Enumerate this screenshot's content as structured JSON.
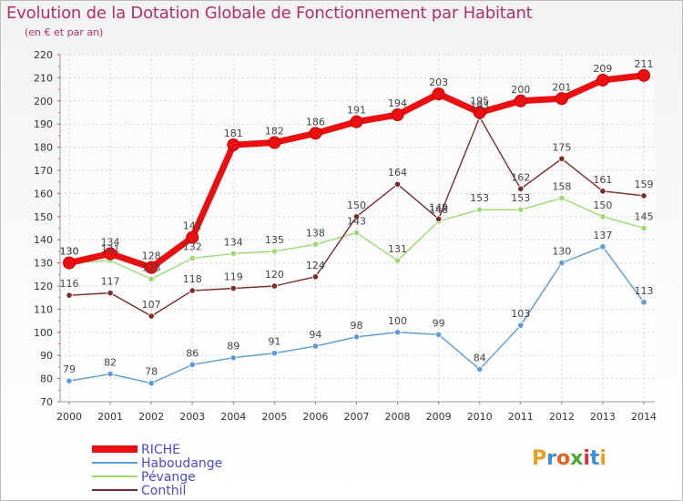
{
  "header": {
    "title": "Evolution de la Dotation Globale de Fonctionnement par Habitant",
    "subtitle": "(en € et par an)"
  },
  "logo": {
    "text": "Proxiti",
    "colors": [
      "#e8a020",
      "#3a8fd8",
      "#e06020",
      "#4aa838",
      "#d83040",
      "#3a8fd8",
      "#e8a020"
    ]
  },
  "chart_data": {
    "type": "line",
    "title": "Evolution de la Dotation Globale de Fonctionnement par Habitant",
    "subtitle": "(en € et par an)",
    "xlabel": "",
    "ylabel": "",
    "categories": [
      "2000",
      "2001",
      "2002",
      "2003",
      "2004",
      "2005",
      "2006",
      "2007",
      "2008",
      "2009",
      "2010",
      "2011",
      "2012",
      "2013",
      "2014"
    ],
    "ylim": [
      70,
      220
    ],
    "yticks": [
      70,
      80,
      90,
      100,
      110,
      120,
      130,
      140,
      150,
      160,
      170,
      180,
      190,
      200,
      210,
      220
    ],
    "grid": true,
    "legend_position": "bottom-left",
    "series": [
      {
        "name": "RICHE",
        "color": "#e81010",
        "values": [
          130,
          134,
          128,
          141,
          181,
          182,
          186,
          191,
          194,
          203,
          195,
          200,
          201,
          209,
          211
        ],
        "labels": [
          "130",
          "134",
          "128",
          "141",
          "181",
          "182",
          "186",
          "191",
          "194",
          "203",
          "195",
          "200",
          "201",
          "209",
          "211"
        ]
      },
      {
        "name": "Haboudange",
        "color": "#5e9ad6",
        "values": [
          79,
          82,
          78,
          86,
          89,
          91,
          94,
          98,
          100,
          99,
          84,
          103,
          130,
          137,
          113
        ],
        "labels": [
          "79",
          "82",
          "78",
          "86",
          "89",
          "91",
          "94",
          "98",
          "100",
          "99",
          "84",
          "103",
          "130",
          "137",
          "113"
        ]
      },
      {
        "name": "Pévange",
        "color": "#9ed872",
        "values": [
          130,
          131,
          123,
          132,
          134,
          135,
          138,
          143,
          131,
          148,
          153,
          153,
          158,
          150,
          145
        ],
        "labels": [
          "130",
          "131",
          "123",
          "132",
          "134",
          "135",
          "138",
          "143",
          "131",
          "148",
          "153",
          "153",
          "158",
          "150",
          "145"
        ]
      },
      {
        "name": "Conthil",
        "color": "#7a2a2a",
        "values": [
          116,
          117,
          107,
          118,
          119,
          120,
          124,
          150,
          164,
          149,
          193,
          162,
          175,
          161,
          159
        ],
        "labels": [
          "116",
          "117",
          "107",
          "118",
          "119",
          "120",
          "124",
          "150",
          "164",
          "149",
          "193",
          "162",
          "175",
          "161",
          "159"
        ]
      }
    ]
  }
}
